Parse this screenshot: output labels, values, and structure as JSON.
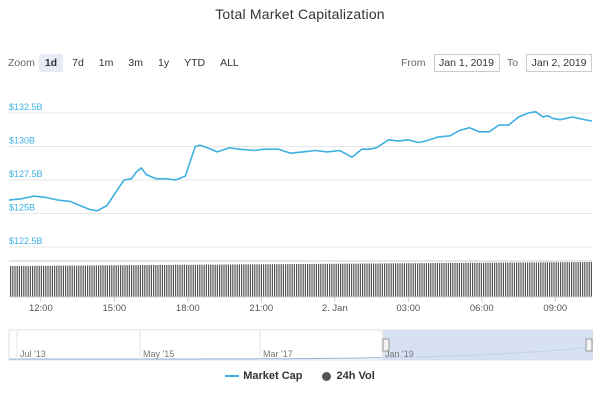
{
  "title": "Total Market Capitalization",
  "zoom": {
    "label": "Zoom",
    "buttons": [
      "1d",
      "7d",
      "1m",
      "3m",
      "1y",
      "YTD",
      "ALL"
    ],
    "active": "1d"
  },
  "range": {
    "from_label": "From",
    "from_value": "Jan 1, 2019",
    "to_label": "To",
    "to_value": "Jan 2, 2019"
  },
  "colors": {
    "market_cap": "#3fb0e0",
    "volume": "#555555",
    "navigator_fill": "#cdd9ef",
    "grid": "#e6e6e6"
  },
  "chart_data": {
    "type": "line",
    "title": "Total Market Capitalization",
    "x_unit": "hours after Jan 1, 2019 10:05",
    "x_range": [
      0,
      23.8
    ],
    "ylim": [
      122.5,
      132.5
    ],
    "y_ticks": [
      "$132.5B",
      "$130B",
      "$127.5B",
      "$125B",
      "$122.5B"
    ],
    "y_tick_values": [
      132.5,
      130,
      127.5,
      125,
      122.5
    ],
    "x_ticks": [
      "12:00",
      "15:00",
      "18:00",
      "21:00",
      "2. Jan",
      "03:00",
      "06:00",
      "09:00"
    ],
    "x_tick_values": [
      1.3,
      4.3,
      7.3,
      10.3,
      13.3,
      16.3,
      19.3,
      22.3
    ],
    "grid": true,
    "legend_position": "bottom",
    "series": [
      {
        "name": "Market Cap",
        "x": [
          0,
          0.5,
          1,
          1.5,
          2,
          2.5,
          2.9,
          3.3,
          3.6,
          4.0,
          4.4,
          4.7,
          5.0,
          5.2,
          5.4,
          5.6,
          6.0,
          6.4,
          6.8,
          7.2,
          7.6,
          7.8,
          8.1,
          8.5,
          9.0,
          9.4,
          10.0,
          10.4,
          11.0,
          11.5,
          12.0,
          12.5,
          13.0,
          13.5,
          14.0,
          14.4,
          14.7,
          15.0,
          15.5,
          15.9,
          16.3,
          16.7,
          17.0,
          17.5,
          18.0,
          18.4,
          18.8,
          19.2,
          19.6,
          20.0,
          20.4,
          20.8,
          21.2,
          21.5,
          21.8,
          22.0,
          22.2,
          22.5,
          23.0,
          23.5,
          23.8
        ],
        "values": [
          126.0,
          126.1,
          126.3,
          126.2,
          126.0,
          125.9,
          125.6,
          125.3,
          125.2,
          125.6,
          126.7,
          127.5,
          127.6,
          128.1,
          128.4,
          127.9,
          127.6,
          127.6,
          127.5,
          127.8,
          130.0,
          130.1,
          129.9,
          129.6,
          129.9,
          129.8,
          129.7,
          129.8,
          129.8,
          129.5,
          129.6,
          129.7,
          129.6,
          129.7,
          129.2,
          129.8,
          129.8,
          129.9,
          130.5,
          130.4,
          130.5,
          130.3,
          130.4,
          130.7,
          130.8,
          131.2,
          131.4,
          131.1,
          131.1,
          131.6,
          131.6,
          132.2,
          132.5,
          132.6,
          132.2,
          132.3,
          132.1,
          132.0,
          132.2,
          132.0,
          131.9
        ]
      }
    ]
  },
  "navigator": {
    "labels": [
      "Jul '13",
      "May '15",
      "Mar '17",
      "Jan '19"
    ]
  },
  "legend": {
    "market_cap": "Market Cap",
    "volume": "24h Vol"
  }
}
